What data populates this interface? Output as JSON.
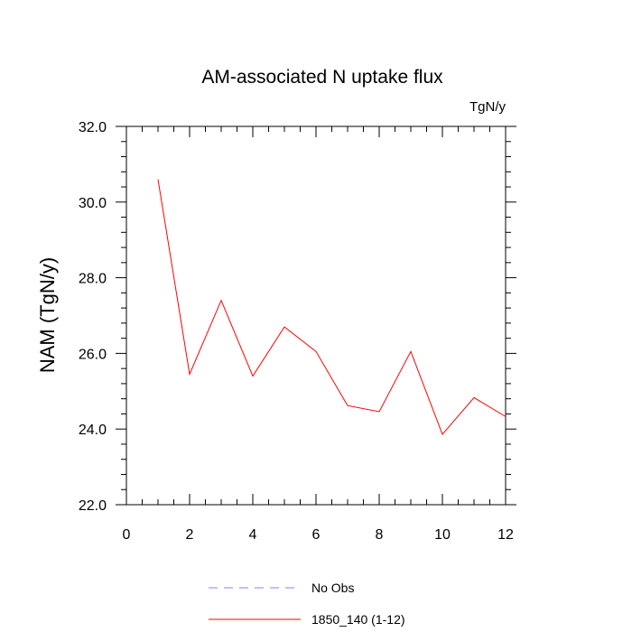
{
  "chart_data": {
    "type": "line",
    "title": "AM-associated N uptake flux",
    "units_label": "TgN/y",
    "xlabel": "",
    "ylabel": "NAM  (TgN/y)",
    "xlim": [
      0,
      12
    ],
    "ylim": [
      22.0,
      32.0
    ],
    "x_ticks": [
      0,
      2,
      4,
      6,
      8,
      10,
      12
    ],
    "x_tick_labels": [
      "0",
      "2",
      "4",
      "6",
      "8",
      "10",
      "12"
    ],
    "y_ticks": [
      22.0,
      24.0,
      26.0,
      28.0,
      30.0,
      32.0
    ],
    "y_tick_labels": [
      "22.0",
      "24.0",
      "26.0",
      "28.0",
      "30.0",
      "32.0"
    ],
    "grid": false,
    "legend_position": "bottom-center",
    "series": [
      {
        "name": "No Obs",
        "color": "#8080ff",
        "dash": "dashed",
        "x": [],
        "y": []
      },
      {
        "name": "1850_140 (1-12)",
        "color": "#ff0000",
        "dash": "solid",
        "x": [
          1,
          2,
          3,
          4,
          5,
          6,
          7,
          8,
          9,
          10,
          11,
          12
        ],
        "y": [
          30.6,
          25.45,
          27.4,
          25.4,
          26.7,
          26.05,
          24.62,
          24.46,
          26.05,
          23.86,
          24.83,
          24.33
        ]
      }
    ]
  }
}
